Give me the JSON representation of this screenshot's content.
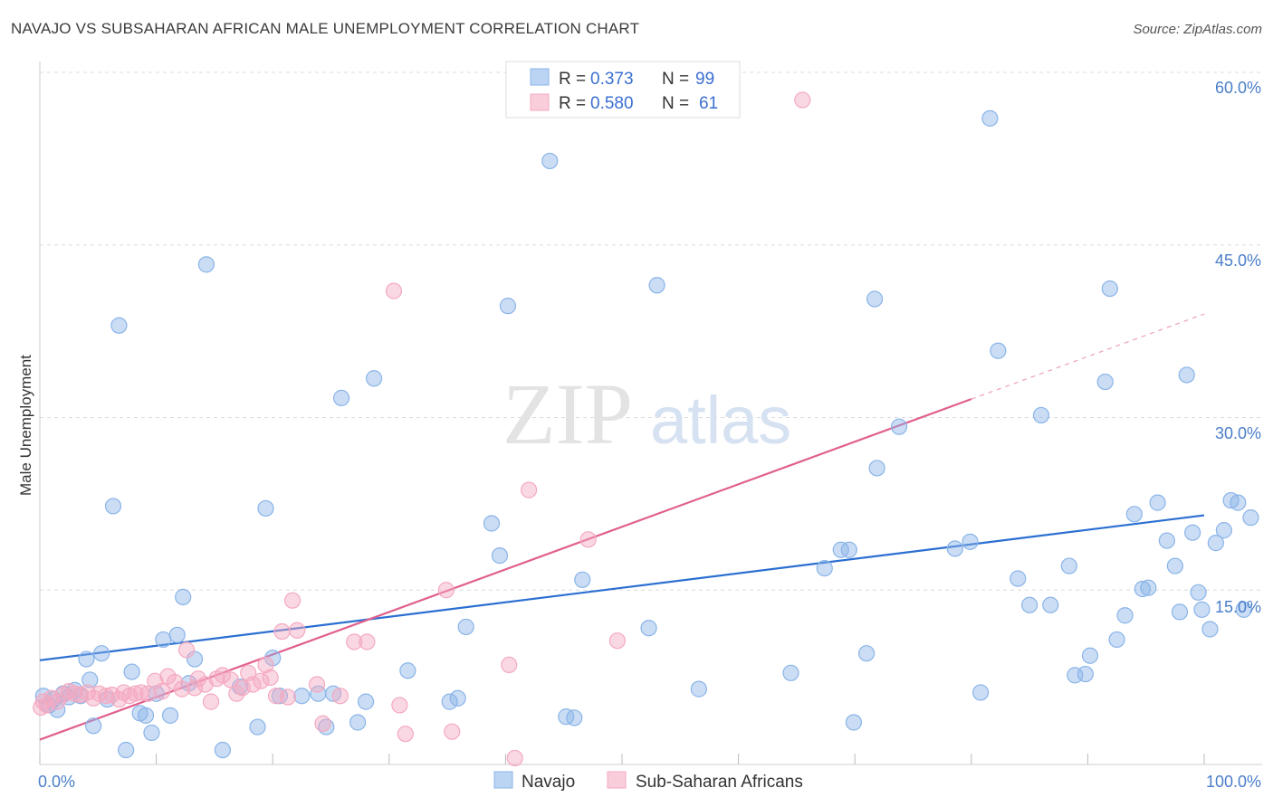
{
  "title": "NAVAJO VS SUBSAHARAN AFRICAN MALE UNEMPLOYMENT CORRELATION CHART",
  "source": "Source: ZipAtlas.com",
  "watermark": {
    "zip": "ZIP",
    "atlas": "atlas"
  },
  "legend": {
    "r_label": "R =",
    "n_label": "N =",
    "navajo": {
      "r": "0.373",
      "n": "99"
    },
    "subsaharan": {
      "r": "0.580",
      "n": "61"
    }
  },
  "chart_data": {
    "type": "scatter",
    "xlabel": "",
    "ylabel": "Male Unemployment",
    "xlim": [
      0,
      100
    ],
    "ylim": [
      0,
      60
    ],
    "x_tick_labels": [
      "0.0%",
      "100.0%"
    ],
    "y_tick_labels": [
      "15.0%",
      "30.0%",
      "45.0%",
      "60.0%"
    ],
    "y_ticks": [
      15,
      30,
      45,
      60
    ],
    "grid": true,
    "legend_position": "top-center",
    "series": [
      {
        "name": "Navajo",
        "color": "#8ab4e8",
        "line_color": "#2b6fd1",
        "trend": {
          "x0": 0,
          "y0": 8.9,
          "x1": 100,
          "y1": 21.5
        },
        "points": [
          [
            0.3,
            5.8
          ],
          [
            0.8,
            5.0
          ],
          [
            1.2,
            5.5
          ],
          [
            1.5,
            4.6
          ],
          [
            2.0,
            6.0
          ],
          [
            2.5,
            5.7
          ],
          [
            3.0,
            6.3
          ],
          [
            3.5,
            5.8
          ],
          [
            4.0,
            9.0
          ],
          [
            4.3,
            7.2
          ],
          [
            4.6,
            3.2
          ],
          [
            5.3,
            9.5
          ],
          [
            5.8,
            5.5
          ],
          [
            6.3,
            22.3
          ],
          [
            6.8,
            38.0
          ],
          [
            7.4,
            1.1
          ],
          [
            7.9,
            7.9
          ],
          [
            8.6,
            4.3
          ],
          [
            9.1,
            4.1
          ],
          [
            9.6,
            2.6
          ],
          [
            10.0,
            6.0
          ],
          [
            10.6,
            10.7
          ],
          [
            11.2,
            4.1
          ],
          [
            11.8,
            11.1
          ],
          [
            12.3,
            14.4
          ],
          [
            12.8,
            6.9
          ],
          [
            13.3,
            9.0
          ],
          [
            14.3,
            43.3
          ],
          [
            15.7,
            1.1
          ],
          [
            17.2,
            6.6
          ],
          [
            18.7,
            3.1
          ],
          [
            19.4,
            22.1
          ],
          [
            20.0,
            9.1
          ],
          [
            20.6,
            5.8
          ],
          [
            22.5,
            5.8
          ],
          [
            23.9,
            6.0
          ],
          [
            24.6,
            3.1
          ],
          [
            25.2,
            6.0
          ],
          [
            25.9,
            31.7
          ],
          [
            27.3,
            3.5
          ],
          [
            28.0,
            5.3
          ],
          [
            28.7,
            33.4
          ],
          [
            31.6,
            8.0
          ],
          [
            35.2,
            5.3
          ],
          [
            35.9,
            5.6
          ],
          [
            36.6,
            11.8
          ],
          [
            38.8,
            20.8
          ],
          [
            39.5,
            18.0
          ],
          [
            40.2,
            39.7
          ],
          [
            43.8,
            52.3
          ],
          [
            45.2,
            4.0
          ],
          [
            45.9,
            3.9
          ],
          [
            46.6,
            15.9
          ],
          [
            52.3,
            11.7
          ],
          [
            53.0,
            41.5
          ],
          [
            56.6,
            6.4
          ],
          [
            64.5,
            7.8
          ],
          [
            67.4,
            16.9
          ],
          [
            68.8,
            18.5
          ],
          [
            69.5,
            18.5
          ],
          [
            69.9,
            3.5
          ],
          [
            71.0,
            9.5
          ],
          [
            71.7,
            40.3
          ],
          [
            71.9,
            25.6
          ],
          [
            73.8,
            29.2
          ],
          [
            78.6,
            18.6
          ],
          [
            79.9,
            19.2
          ],
          [
            80.8,
            6.1
          ],
          [
            81.6,
            56.0
          ],
          [
            82.3,
            35.8
          ],
          [
            84.0,
            16.0
          ],
          [
            85.0,
            13.7
          ],
          [
            86.0,
            30.2
          ],
          [
            86.8,
            13.7
          ],
          [
            88.4,
            17.1
          ],
          [
            88.9,
            7.6
          ],
          [
            89.8,
            7.7
          ],
          [
            90.2,
            9.3
          ],
          [
            91.5,
            33.1
          ],
          [
            91.9,
            41.2
          ],
          [
            92.5,
            10.7
          ],
          [
            93.2,
            12.8
          ],
          [
            94.0,
            21.6
          ],
          [
            94.7,
            15.1
          ],
          [
            95.2,
            15.2
          ],
          [
            96.0,
            22.6
          ],
          [
            96.8,
            19.3
          ],
          [
            97.5,
            17.1
          ],
          [
            97.9,
            13.1
          ],
          [
            98.5,
            33.7
          ],
          [
            99.0,
            20.0
          ],
          [
            99.5,
            14.8
          ],
          [
            99.8,
            13.3
          ],
          [
            100.5,
            11.6
          ],
          [
            101.0,
            19.1
          ],
          [
            101.7,
            20.2
          ],
          [
            102.3,
            22.8
          ],
          [
            102.9,
            22.6
          ],
          [
            103.4,
            13.3
          ],
          [
            104.0,
            21.3
          ]
        ]
      },
      {
        "name": "Sub-Saharan Africans",
        "color": "#f4a9c0",
        "line_color": "#e0608e",
        "trend": {
          "x0": 0,
          "y0": 2.0,
          "x1": 80,
          "y1": 31.6
        },
        "trend_dashed": {
          "x0": 80,
          "y0": 31.6,
          "x1": 100,
          "y1": 39.0
        },
        "points": [
          [
            0.1,
            4.8
          ],
          [
            0.3,
            5.3
          ],
          [
            0.6,
            5.0
          ],
          [
            1.0,
            5.6
          ],
          [
            1.5,
            5.3
          ],
          [
            2.0,
            5.9
          ],
          [
            2.5,
            6.2
          ],
          [
            3.0,
            6.0
          ],
          [
            3.5,
            5.9
          ],
          [
            4.1,
            6.1
          ],
          [
            4.6,
            5.6
          ],
          [
            5.1,
            6.0
          ],
          [
            5.7,
            5.8
          ],
          [
            6.2,
            5.9
          ],
          [
            6.8,
            5.5
          ],
          [
            7.2,
            6.1
          ],
          [
            7.7,
            5.8
          ],
          [
            8.2,
            6.0
          ],
          [
            8.7,
            6.1
          ],
          [
            9.3,
            6.0
          ],
          [
            9.9,
            7.1
          ],
          [
            10.5,
            6.2
          ],
          [
            11.0,
            7.5
          ],
          [
            11.6,
            7.0
          ],
          [
            12.2,
            6.4
          ],
          [
            12.6,
            9.8
          ],
          [
            13.3,
            6.5
          ],
          [
            13.6,
            7.3
          ],
          [
            14.2,
            6.8
          ],
          [
            14.7,
            5.3
          ],
          [
            15.2,
            7.3
          ],
          [
            15.7,
            7.6
          ],
          [
            16.4,
            7.2
          ],
          [
            16.9,
            6.0
          ],
          [
            17.4,
            6.5
          ],
          [
            17.9,
            7.8
          ],
          [
            18.3,
            6.8
          ],
          [
            19.0,
            7.1
          ],
          [
            19.4,
            8.5
          ],
          [
            19.8,
            7.4
          ],
          [
            20.3,
            5.8
          ],
          [
            20.8,
            11.4
          ],
          [
            21.3,
            5.7
          ],
          [
            21.7,
            14.1
          ],
          [
            22.1,
            11.5
          ],
          [
            23.8,
            6.8
          ],
          [
            24.3,
            3.4
          ],
          [
            25.8,
            5.8
          ],
          [
            27.0,
            10.5
          ],
          [
            28.1,
            10.5
          ],
          [
            30.4,
            41.0
          ],
          [
            30.9,
            5.0
          ],
          [
            31.4,
            2.5
          ],
          [
            34.9,
            15.0
          ],
          [
            35.4,
            2.7
          ],
          [
            40.3,
            8.5
          ],
          [
            40.8,
            0.4
          ],
          [
            42.0,
            23.7
          ],
          [
            47.1,
            19.4
          ],
          [
            49.6,
            10.6
          ],
          [
            65.5,
            57.6
          ]
        ]
      }
    ]
  },
  "bottom_legend": [
    "Navajo",
    "Sub-Saharan Africans"
  ]
}
